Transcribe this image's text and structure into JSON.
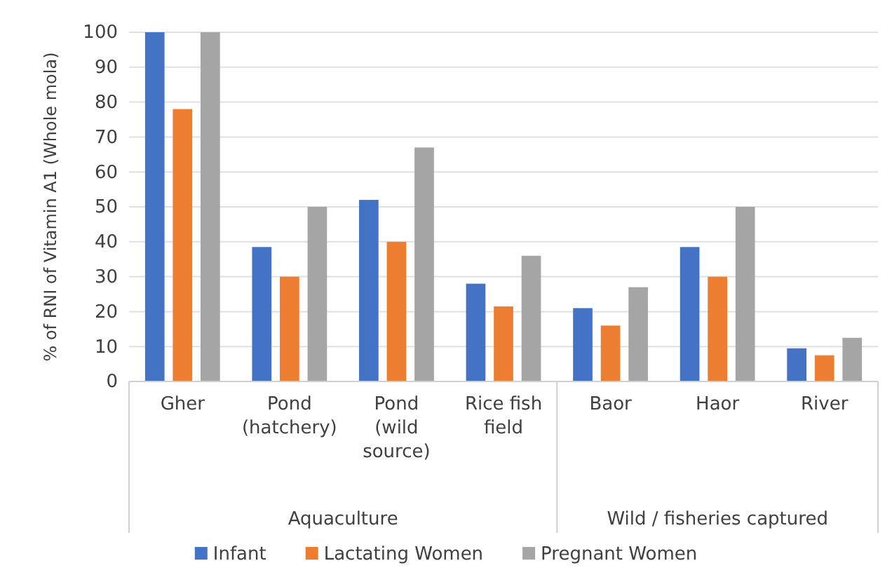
{
  "chart_data": {
    "type": "bar",
    "ylabel": "% of RNI of Vitamin A1 (Whole mola)",
    "categories": [
      "Gher",
      "Pond (hatchery)",
      "Pond (wild source)",
      "Rice fish field",
      "Baor",
      "Haor",
      "River"
    ],
    "series": [
      {
        "name": "Infant",
        "color": "#4472c4",
        "values": [
          100,
          38.5,
          52,
          28,
          21,
          38.5,
          9.5
        ]
      },
      {
        "name": "Lactating Women",
        "color": "#ed7d31",
        "values": [
          78,
          30,
          40,
          21.5,
          16,
          30,
          7.5
        ]
      },
      {
        "name": "Pregnant Women",
        "color": "#a5a5a5",
        "values": [
          100,
          50,
          67,
          36,
          27,
          50,
          12.5
        ]
      }
    ],
    "ylim": [
      0,
      100
    ],
    "yticks": [
      0,
      10,
      20,
      30,
      40,
      50,
      60,
      70,
      80,
      90,
      100
    ],
    "grid": "y",
    "legend": "bottom",
    "annotations": [
      "Aquaculture",
      "Wild / fisheries captured"
    ]
  }
}
